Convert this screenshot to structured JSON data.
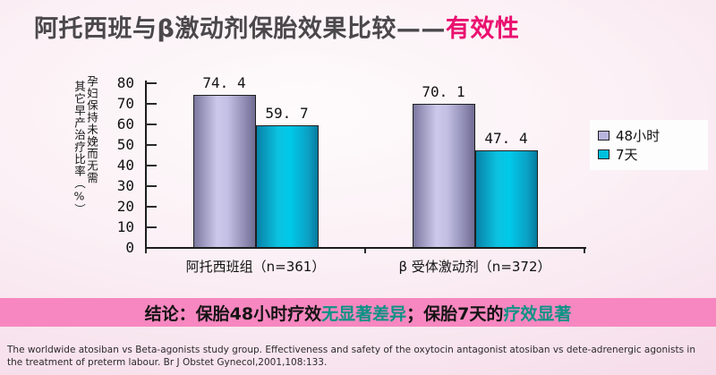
{
  "title": {
    "main": "阿托西班与β激动剂保胎效果比较——",
    "accent": "有效性"
  },
  "chart_data": {
    "type": "bar",
    "title": "",
    "categories": [
      "阿托西班组（n=361）",
      "β 受体激动剂（n=372）"
    ],
    "series": [
      {
        "name": "48小时",
        "values": [
          74.4,
          70.1
        ],
        "labels": [
          "74. 4",
          "70. 1"
        ],
        "color": "#b9b5de"
      },
      {
        "name": "7天",
        "values": [
          59.7,
          47.4
        ],
        "labels": [
          "59. 7",
          "47. 4"
        ],
        "color": "#00c0de"
      }
    ],
    "xlabel": "",
    "ylabel": "孕妇保持未娩而无需其它早产治疗比率（%）",
    "ylabel_lines": [
      "孕妇保持未娩而无需",
      "其它早产治疗比率（%）"
    ],
    "ylim": [
      0,
      80
    ],
    "yticks": [
      0,
      10,
      20,
      30,
      40,
      50,
      60,
      70,
      80
    ],
    "grid": false,
    "legend_position": "right"
  },
  "conclusion": {
    "parts": [
      {
        "text": "结论：保胎48小时疗效",
        "color": "#141414"
      },
      {
        "text": "无显著差异",
        "color": "#0d9285"
      },
      {
        "text": "；保胎7天的",
        "color": "#141414"
      },
      {
        "text": "疗效显著",
        "color": "#0d9285"
      }
    ]
  },
  "citation": "The worldwide atosiban vs Beta-agonists study group. Effectiveness and safety of the oxytocin antagonist atosiban vs dete-adrenergic agonists in the treatment of preterm labour. Br J Obstet Gynecol,2001,108:133.",
  "colors": {
    "background_pink": "#f6dfeb",
    "title_text": "#4b484b",
    "title_accent": "#ea116f",
    "band_pink": "#f787c0",
    "highlight_teal": "#0d9285",
    "bar_48h": "#b9b5de",
    "bar_7d": "#00c0de"
  }
}
